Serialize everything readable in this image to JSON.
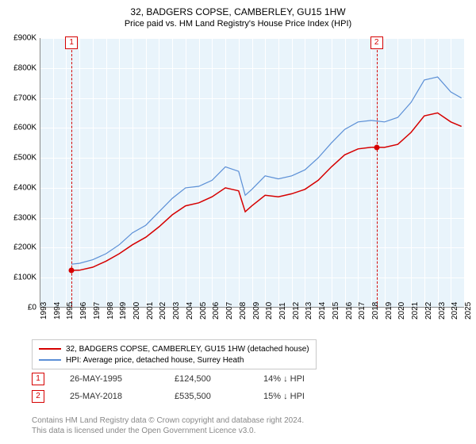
{
  "title": "32, BADGERS COPSE, CAMBERLEY, GU15 1HW",
  "subtitle": "Price paid vs. HM Land Registry's House Price Index (HPI)",
  "chart": {
    "type": "line",
    "background_color": "#e9f4fb",
    "grid_color": "#ffffff",
    "axis_color": "#8a8a8a",
    "ylim": [
      0,
      900000
    ],
    "ytick_step": 100000,
    "yticks": [
      "£0",
      "£100K",
      "£200K",
      "£300K",
      "£400K",
      "£500K",
      "£600K",
      "£700K",
      "£800K",
      "£900K"
    ],
    "xlim": [
      1993,
      2025
    ],
    "xticks": [
      1993,
      1994,
      1995,
      1996,
      1997,
      1998,
      1999,
      2000,
      2001,
      2002,
      2003,
      2004,
      2005,
      2006,
      2007,
      2008,
      2009,
      2010,
      2011,
      2012,
      2013,
      2014,
      2015,
      2016,
      2017,
      2018,
      2019,
      2020,
      2021,
      2022,
      2023,
      2024,
      2025
    ],
    "series": [
      {
        "name": "property",
        "label": "32, BADGERS COPSE, CAMBERLEY, GU15 1HW (detached house)",
        "color": "#d60000",
        "line_width": 1.5,
        "data": [
          {
            "x": 1995.4,
            "y": 124500
          },
          {
            "x": 1996,
            "y": 125000
          },
          {
            "x": 1997,
            "y": 135000
          },
          {
            "x": 1998,
            "y": 155000
          },
          {
            "x": 1999,
            "y": 180000
          },
          {
            "x": 2000,
            "y": 210000
          },
          {
            "x": 2001,
            "y": 235000
          },
          {
            "x": 2002,
            "y": 270000
          },
          {
            "x": 2003,
            "y": 310000
          },
          {
            "x": 2004,
            "y": 340000
          },
          {
            "x": 2005,
            "y": 350000
          },
          {
            "x": 2006,
            "y": 370000
          },
          {
            "x": 2007,
            "y": 400000
          },
          {
            "x": 2008,
            "y": 390000
          },
          {
            "x": 2008.5,
            "y": 320000
          },
          {
            "x": 2009,
            "y": 340000
          },
          {
            "x": 2010,
            "y": 375000
          },
          {
            "x": 2011,
            "y": 370000
          },
          {
            "x": 2012,
            "y": 380000
          },
          {
            "x": 2013,
            "y": 395000
          },
          {
            "x": 2014,
            "y": 425000
          },
          {
            "x": 2015,
            "y": 470000
          },
          {
            "x": 2016,
            "y": 510000
          },
          {
            "x": 2017,
            "y": 530000
          },
          {
            "x": 2018,
            "y": 535500
          },
          {
            "x": 2018.4,
            "y": 535500
          },
          {
            "x": 2019,
            "y": 535000
          },
          {
            "x": 2020,
            "y": 545000
          },
          {
            "x": 2021,
            "y": 585000
          },
          {
            "x": 2022,
            "y": 640000
          },
          {
            "x": 2023,
            "y": 650000
          },
          {
            "x": 2024,
            "y": 620000
          },
          {
            "x": 2024.8,
            "y": 605000
          }
        ]
      },
      {
        "name": "hpi",
        "label": "HPI: Average price, detached house, Surrey Heath",
        "color": "#5b8fd6",
        "line_width": 1.2,
        "data": [
          {
            "x": 1995.4,
            "y": 145000
          },
          {
            "x": 1996,
            "y": 148000
          },
          {
            "x": 1997,
            "y": 160000
          },
          {
            "x": 1998,
            "y": 180000
          },
          {
            "x": 1999,
            "y": 210000
          },
          {
            "x": 2000,
            "y": 250000
          },
          {
            "x": 2001,
            "y": 275000
          },
          {
            "x": 2002,
            "y": 320000
          },
          {
            "x": 2003,
            "y": 365000
          },
          {
            "x": 2004,
            "y": 400000
          },
          {
            "x": 2005,
            "y": 405000
          },
          {
            "x": 2006,
            "y": 425000
          },
          {
            "x": 2007,
            "y": 470000
          },
          {
            "x": 2008,
            "y": 455000
          },
          {
            "x": 2008.5,
            "y": 375000
          },
          {
            "x": 2009,
            "y": 395000
          },
          {
            "x": 2010,
            "y": 440000
          },
          {
            "x": 2011,
            "y": 430000
          },
          {
            "x": 2012,
            "y": 440000
          },
          {
            "x": 2013,
            "y": 460000
          },
          {
            "x": 2014,
            "y": 500000
          },
          {
            "x": 2015,
            "y": 550000
          },
          {
            "x": 2016,
            "y": 595000
          },
          {
            "x": 2017,
            "y": 620000
          },
          {
            "x": 2018,
            "y": 625000
          },
          {
            "x": 2019,
            "y": 620000
          },
          {
            "x": 2020,
            "y": 635000
          },
          {
            "x": 2021,
            "y": 685000
          },
          {
            "x": 2022,
            "y": 760000
          },
          {
            "x": 2023,
            "y": 770000
          },
          {
            "x": 2024,
            "y": 720000
          },
          {
            "x": 2024.8,
            "y": 700000
          }
        ]
      }
    ],
    "markers": [
      {
        "id": "1",
        "x": 1995.4,
        "y": 124500,
        "color": "#d60000"
      },
      {
        "id": "2",
        "x": 2018.4,
        "y": 535500,
        "color": "#d60000"
      }
    ]
  },
  "legend": {
    "items": [
      {
        "label": "32, BADGERS COPSE, CAMBERLEY, GU15 1HW (detached house)",
        "color": "#d60000"
      },
      {
        "label": "HPI: Average price, detached house, Surrey Heath",
        "color": "#5b8fd6"
      }
    ]
  },
  "events": [
    {
      "id": "1",
      "date": "26-MAY-1995",
      "price": "£124,500",
      "delta": "14% ↓ HPI"
    },
    {
      "id": "2",
      "date": "25-MAY-2018",
      "price": "£535,500",
      "delta": "15% ↓ HPI"
    }
  ],
  "footer": {
    "line1": "Contains HM Land Registry data © Crown copyright and database right 2024.",
    "line2": "This data is licensed under the Open Government Licence v3.0."
  }
}
